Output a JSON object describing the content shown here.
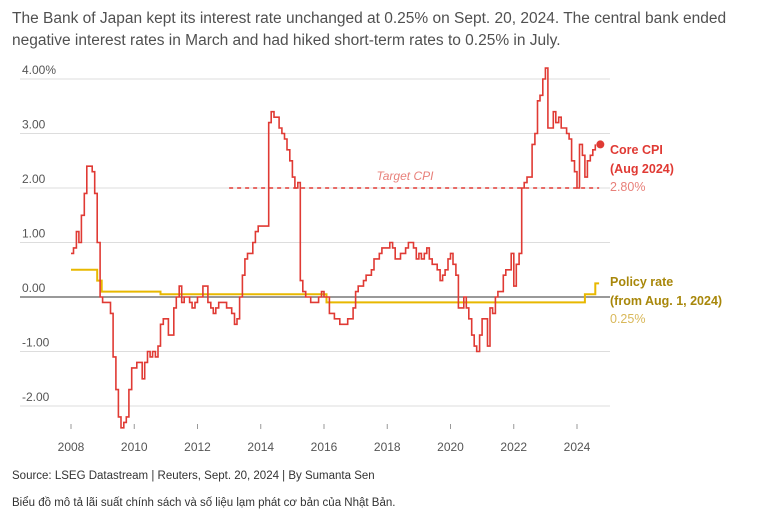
{
  "subtitle": "The Bank of Japan kept its interest rate unchanged at 0.25% on Sept. 20, 2024. The central bank ended negative interest rates in March and had hiked short-term rates to 0.25% in July.",
  "source": "Source: LSEG Datastream | Reuters, Sept. 20, 2024 | By Sumanta Sen",
  "caption": "Biểu đồ mô tả lãi suất chính sách và số liệu lạm phát cơ bản của Nhật Bản.",
  "colors": {
    "cpi": "#e03a34",
    "policy": "#e8b800",
    "policy_label": "#a8870a",
    "cpi_value": "#e8807a",
    "policy_value": "#d9b85a",
    "grid": "#dddddd",
    "zero": "#333333"
  },
  "chart_data": {
    "type": "line",
    "x_range": [
      2007.5,
      2025.0
    ],
    "ylim": [
      -2.5,
      4.3
    ],
    "y_ticks": [
      4.0,
      3.0,
      2.0,
      1.0,
      0.0,
      -1.0,
      -2.0
    ],
    "y_tick_labels": [
      "4.00%",
      "3.00",
      "2.00",
      "1.00",
      "0.00",
      "-1.00",
      "-2.00"
    ],
    "x_ticks": [
      2008,
      2010,
      2012,
      2014,
      2016,
      2018,
      2020,
      2022,
      2024
    ],
    "x_tick_labels": [
      "2008",
      "2010",
      "2012",
      "2014",
      "2016",
      "2018",
      "2020",
      "2022",
      "2024"
    ],
    "grid": "horizontal",
    "target": {
      "label": "Target CPI",
      "value": 2.0,
      "x_start": 2013.0,
      "x_end": 2024.7
    },
    "series": [
      {
        "key": "cpi",
        "name_lines": [
          "Core CPI",
          "(Aug 2024)"
        ],
        "value_label": "2.80%",
        "points": [
          [
            2008.0,
            0.8
          ],
          [
            2008.08,
            0.9
          ],
          [
            2008.17,
            1.2
          ],
          [
            2008.25,
            1.0
          ],
          [
            2008.33,
            1.5
          ],
          [
            2008.42,
            1.9
          ],
          [
            2008.5,
            2.4
          ],
          [
            2008.58,
            2.4
          ],
          [
            2008.67,
            2.3
          ],
          [
            2008.75,
            1.9
          ],
          [
            2008.83,
            1.0
          ],
          [
            2008.92,
            0.0
          ],
          [
            2009.0,
            -0.1
          ],
          [
            2009.08,
            -0.1
          ],
          [
            2009.17,
            -0.1
          ],
          [
            2009.25,
            -0.3
          ],
          [
            2009.33,
            -1.1
          ],
          [
            2009.42,
            -1.7
          ],
          [
            2009.5,
            -2.2
          ],
          [
            2009.58,
            -2.4
          ],
          [
            2009.67,
            -2.3
          ],
          [
            2009.75,
            -2.2
          ],
          [
            2009.83,
            -1.7
          ],
          [
            2009.92,
            -1.3
          ],
          [
            2010.0,
            -1.3
          ],
          [
            2010.08,
            -1.2
          ],
          [
            2010.17,
            -1.2
          ],
          [
            2010.25,
            -1.5
          ],
          [
            2010.33,
            -1.2
          ],
          [
            2010.42,
            -1.0
          ],
          [
            2010.5,
            -1.1
          ],
          [
            2010.58,
            -1.0
          ],
          [
            2010.67,
            -1.1
          ],
          [
            2010.75,
            -0.9
          ],
          [
            2010.83,
            -0.5
          ],
          [
            2010.92,
            -0.4
          ],
          [
            2011.0,
            -0.4
          ],
          [
            2011.08,
            -0.7
          ],
          [
            2011.17,
            -0.7
          ],
          [
            2011.25,
            -0.2
          ],
          [
            2011.33,
            0.0
          ],
          [
            2011.42,
            0.2
          ],
          [
            2011.5,
            -0.1
          ],
          [
            2011.58,
            0.0
          ],
          [
            2011.67,
            0.0
          ],
          [
            2011.75,
            -0.1
          ],
          [
            2011.83,
            -0.2
          ],
          [
            2011.92,
            -0.1
          ],
          [
            2012.0,
            0.0
          ],
          [
            2012.08,
            0.0
          ],
          [
            2012.17,
            0.2
          ],
          [
            2012.25,
            0.2
          ],
          [
            2012.33,
            -0.1
          ],
          [
            2012.42,
            -0.2
          ],
          [
            2012.5,
            -0.3
          ],
          [
            2012.58,
            -0.2
          ],
          [
            2012.67,
            -0.1
          ],
          [
            2012.75,
            -0.1
          ],
          [
            2012.83,
            -0.1
          ],
          [
            2012.92,
            -0.2
          ],
          [
            2013.0,
            -0.2
          ],
          [
            2013.08,
            -0.3
          ],
          [
            2013.17,
            -0.5
          ],
          [
            2013.25,
            -0.4
          ],
          [
            2013.33,
            0.0
          ],
          [
            2013.42,
            0.4
          ],
          [
            2013.5,
            0.7
          ],
          [
            2013.58,
            0.8
          ],
          [
            2013.67,
            0.8
          ],
          [
            2013.75,
            1.0
          ],
          [
            2013.83,
            1.2
          ],
          [
            2013.92,
            1.3
          ],
          [
            2014.0,
            1.3
          ],
          [
            2014.08,
            1.3
          ],
          [
            2014.17,
            1.3
          ],
          [
            2014.25,
            3.2
          ],
          [
            2014.33,
            3.4
          ],
          [
            2014.42,
            3.3
          ],
          [
            2014.5,
            3.3
          ],
          [
            2014.58,
            3.1
          ],
          [
            2014.67,
            3.0
          ],
          [
            2014.75,
            2.9
          ],
          [
            2014.83,
            2.7
          ],
          [
            2014.92,
            2.5
          ],
          [
            2015.0,
            2.2
          ],
          [
            2015.08,
            2.0
          ],
          [
            2015.17,
            2.1
          ],
          [
            2015.25,
            0.3
          ],
          [
            2015.33,
            0.1
          ],
          [
            2015.42,
            0.0
          ],
          [
            2015.5,
            0.0
          ],
          [
            2015.58,
            -0.1
          ],
          [
            2015.67,
            -0.1
          ],
          [
            2015.75,
            -0.1
          ],
          [
            2015.83,
            0.0
          ],
          [
            2015.92,
            0.1
          ],
          [
            2016.0,
            0.0
          ],
          [
            2016.08,
            0.0
          ],
          [
            2016.17,
            -0.3
          ],
          [
            2016.25,
            -0.3
          ],
          [
            2016.33,
            -0.4
          ],
          [
            2016.42,
            -0.4
          ],
          [
            2016.5,
            -0.5
          ],
          [
            2016.58,
            -0.5
          ],
          [
            2016.67,
            -0.5
          ],
          [
            2016.75,
            -0.4
          ],
          [
            2016.83,
            -0.4
          ],
          [
            2016.92,
            -0.2
          ],
          [
            2017.0,
            0.1
          ],
          [
            2017.08,
            0.2
          ],
          [
            2017.17,
            0.2
          ],
          [
            2017.25,
            0.3
          ],
          [
            2017.33,
            0.4
          ],
          [
            2017.42,
            0.4
          ],
          [
            2017.5,
            0.5
          ],
          [
            2017.58,
            0.7
          ],
          [
            2017.67,
            0.7
          ],
          [
            2017.75,
            0.8
          ],
          [
            2017.83,
            0.9
          ],
          [
            2017.92,
            0.9
          ],
          [
            2018.0,
            0.9
          ],
          [
            2018.08,
            1.0
          ],
          [
            2018.17,
            0.9
          ],
          [
            2018.25,
            0.7
          ],
          [
            2018.33,
            0.7
          ],
          [
            2018.42,
            0.8
          ],
          [
            2018.5,
            0.8
          ],
          [
            2018.58,
            0.9
          ],
          [
            2018.67,
            1.0
          ],
          [
            2018.75,
            1.0
          ],
          [
            2018.83,
            0.9
          ],
          [
            2018.92,
            0.7
          ],
          [
            2019.0,
            0.8
          ],
          [
            2019.08,
            0.7
          ],
          [
            2019.17,
            0.8
          ],
          [
            2019.25,
            0.9
          ],
          [
            2019.33,
            0.7
          ],
          [
            2019.42,
            0.6
          ],
          [
            2019.5,
            0.6
          ],
          [
            2019.58,
            0.5
          ],
          [
            2019.67,
            0.3
          ],
          [
            2019.75,
            0.4
          ],
          [
            2019.83,
            0.5
          ],
          [
            2019.92,
            0.7
          ],
          [
            2020.0,
            0.8
          ],
          [
            2020.08,
            0.6
          ],
          [
            2020.17,
            0.4
          ],
          [
            2020.25,
            -0.2
          ],
          [
            2020.33,
            -0.2
          ],
          [
            2020.42,
            0.0
          ],
          [
            2020.5,
            -0.2
          ],
          [
            2020.58,
            -0.4
          ],
          [
            2020.67,
            -0.7
          ],
          [
            2020.75,
            -0.9
          ],
          [
            2020.83,
            -1.0
          ],
          [
            2020.92,
            -0.7
          ],
          [
            2021.0,
            -0.4
          ],
          [
            2021.08,
            -0.4
          ],
          [
            2021.17,
            -0.9
          ],
          [
            2021.25,
            -0.2
          ],
          [
            2021.33,
            -0.3
          ],
          [
            2021.42,
            0.0
          ],
          [
            2021.5,
            0.1
          ],
          [
            2021.58,
            0.1
          ],
          [
            2021.67,
            0.4
          ],
          [
            2021.75,
            0.5
          ],
          [
            2021.83,
            0.5
          ],
          [
            2021.92,
            0.8
          ],
          [
            2022.0,
            0.2
          ],
          [
            2022.08,
            0.6
          ],
          [
            2022.17,
            0.8
          ],
          [
            2022.25,
            2.0
          ],
          [
            2022.33,
            2.1
          ],
          [
            2022.42,
            2.2
          ],
          [
            2022.5,
            2.2
          ],
          [
            2022.58,
            2.8
          ],
          [
            2022.67,
            3.0
          ],
          [
            2022.75,
            3.6
          ],
          [
            2022.83,
            3.7
          ],
          [
            2022.92,
            4.0
          ],
          [
            2023.0,
            4.2
          ],
          [
            2023.08,
            3.1
          ],
          [
            2023.17,
            3.1
          ],
          [
            2023.25,
            3.4
          ],
          [
            2023.33,
            3.2
          ],
          [
            2023.42,
            3.3
          ],
          [
            2023.5,
            3.1
          ],
          [
            2023.58,
            3.1
          ],
          [
            2023.67,
            3.0
          ],
          [
            2023.75,
            2.9
          ],
          [
            2023.83,
            2.5
          ],
          [
            2023.92,
            2.3
          ],
          [
            2024.0,
            2.0
          ],
          [
            2024.08,
            2.8
          ],
          [
            2024.17,
            2.6
          ],
          [
            2024.25,
            2.2
          ],
          [
            2024.33,
            2.5
          ],
          [
            2024.42,
            2.6
          ],
          [
            2024.5,
            2.7
          ],
          [
            2024.58,
            2.8
          ]
        ]
      },
      {
        "key": "policy",
        "name_lines": [
          "Policy rate",
          "(from Aug. 1, 2024)"
        ],
        "value_label": "0.25%",
        "points": [
          [
            2008.0,
            0.5
          ],
          [
            2008.83,
            0.5
          ],
          [
            2008.83,
            0.3
          ],
          [
            2008.97,
            0.3
          ],
          [
            2008.97,
            0.1
          ],
          [
            2010.83,
            0.1
          ],
          [
            2010.83,
            0.05
          ],
          [
            2016.08,
            0.05
          ],
          [
            2016.08,
            -0.1
          ],
          [
            2024.25,
            -0.1
          ],
          [
            2024.25,
            0.05
          ],
          [
            2024.58,
            0.05
          ],
          [
            2024.58,
            0.25
          ],
          [
            2024.7,
            0.25
          ]
        ]
      }
    ]
  }
}
